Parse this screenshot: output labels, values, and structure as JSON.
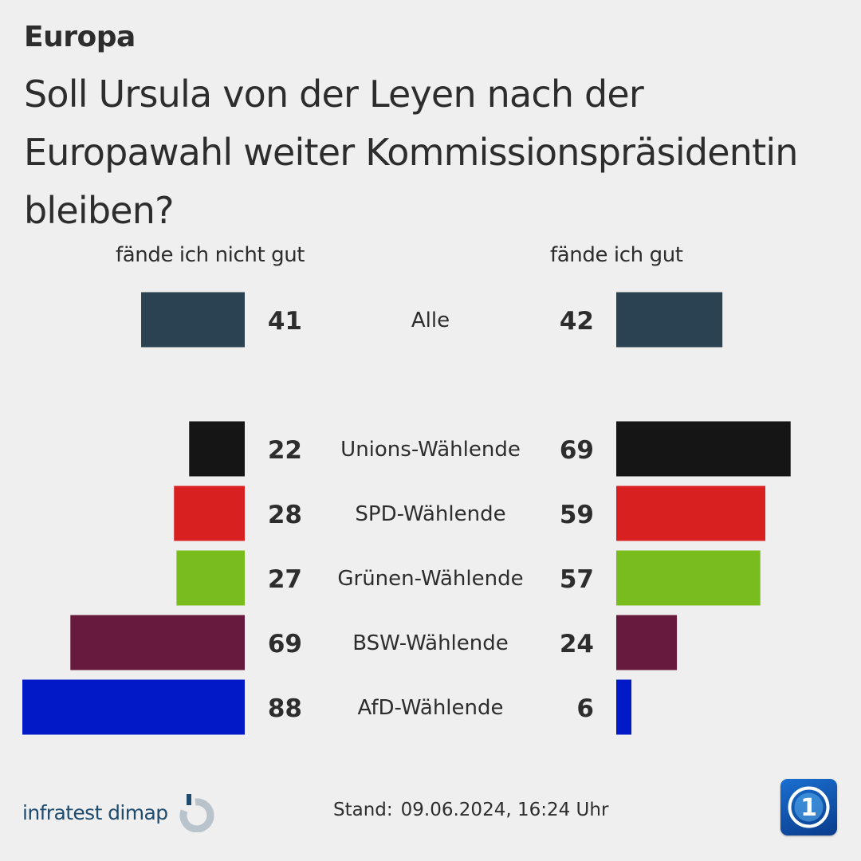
{
  "header": {
    "kicker": "Europa",
    "question": "Soll Ursula von der Leyen nach der Europawahl weiter Kommissionspräsidentin bleiben?"
  },
  "columns": {
    "left": "fände ich nicht gut",
    "right": "fände ich gut"
  },
  "chart_data": {
    "type": "bar",
    "orientation": "horizontal-diverging",
    "categories": [
      "Alle",
      "Unions-Wählende",
      "SPD-Wählende",
      "Grünen-Wählende",
      "BSW-Wählende",
      "AfD-Wählende"
    ],
    "series": [
      {
        "name": "fände ich nicht gut",
        "values": [
          41,
          22,
          28,
          27,
          69,
          88
        ]
      },
      {
        "name": "fände ich gut",
        "values": [
          42,
          69,
          59,
          57,
          24,
          6
        ]
      }
    ],
    "colors": [
      "#2b4253",
      "#151515",
      "#d82020",
      "#78bc1e",
      "#681a3e",
      "#0219c7"
    ],
    "legend": "none",
    "grid": false
  },
  "footer": {
    "brand": "infratest dimap",
    "stand_label": "Stand:",
    "stand_value": "09.06.2024, 16:24 Uhr",
    "tv_logo_icon": "ard-tagesschau-logo-icon"
  }
}
